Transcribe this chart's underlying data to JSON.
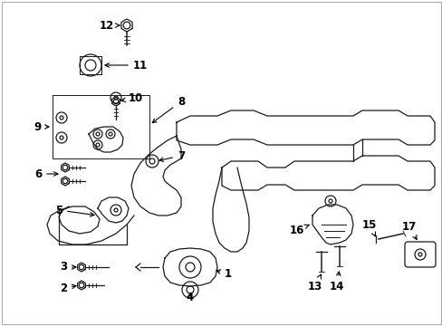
{
  "bg_color": "#ffffff",
  "line_color": "#1a1a1a",
  "fig_width": 4.89,
  "fig_height": 3.6,
  "dpi": 100,
  "border_color": "#888888"
}
